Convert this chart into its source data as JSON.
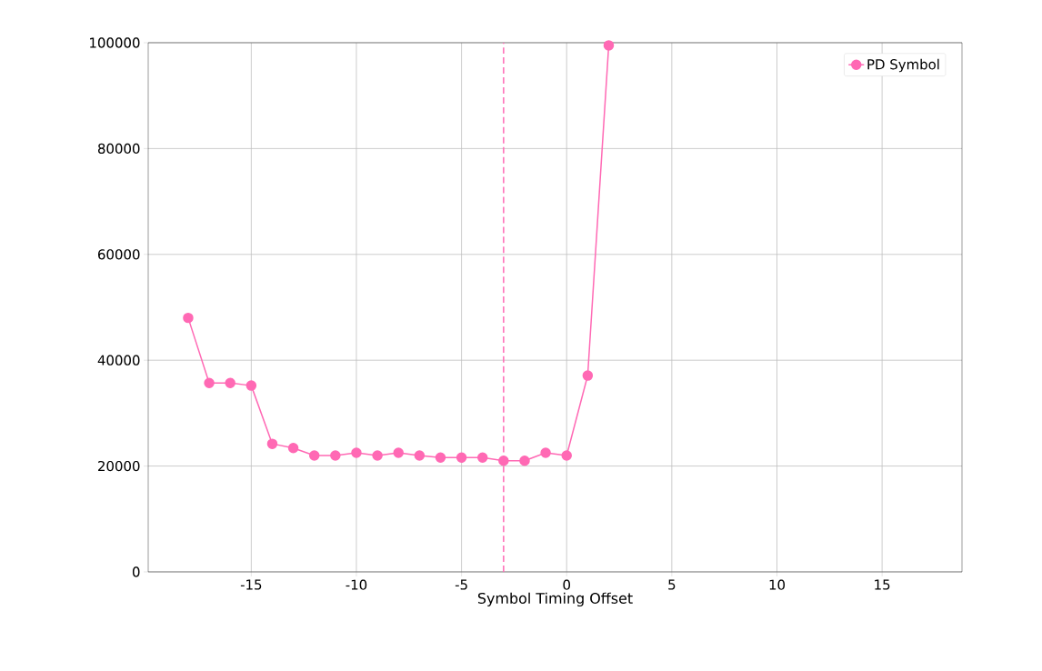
{
  "chart_data": {
    "type": "line",
    "xlabel": "Symbol Timing Offset",
    "x": [
      -18,
      -17,
      -16,
      -15,
      -14,
      -13,
      -12,
      -11,
      -10,
      -9,
      -8,
      -7,
      -6,
      -5,
      -4,
      -3,
      -2,
      -1,
      0,
      1,
      2
    ],
    "series": [
      {
        "name": "PD Symbol",
        "color": "#ff69b4",
        "values": [
          48000,
          35700,
          35700,
          35200,
          24200,
          23400,
          22000,
          22000,
          22500,
          22000,
          22500,
          22000,
          21600,
          21600,
          21600,
          21000,
          21000,
          22500,
          22000,
          37100,
          99500
        ]
      }
    ],
    "xlim": [
      -19.9,
      18.8
    ],
    "ylim": [
      0,
      100000
    ],
    "xticks": [
      -15,
      -10,
      -5,
      0,
      5,
      10,
      15
    ],
    "yticks": [
      0,
      20000,
      40000,
      60000,
      80000,
      100000
    ],
    "ref_lines": [
      {
        "axis": "x",
        "value": -3,
        "color": "#ff69b4",
        "line_style": "dashed"
      }
    ],
    "grid": true,
    "legend": "top right",
    "marker": "circle",
    "line_style": "solid"
  }
}
